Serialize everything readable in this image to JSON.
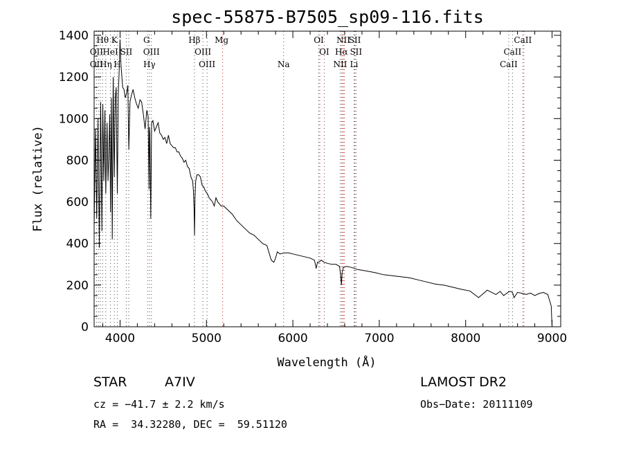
{
  "chart_data": {
    "type": "line",
    "title": "spec-55875-B7505_sp09-116.fits",
    "xlabel": "Wavelength (Å)",
    "ylabel": "Flux (relative)",
    "xlim": [
      3700,
      9100
    ],
    "ylim": [
      0,
      1420
    ],
    "xticks": [
      4000,
      5000,
      6000,
      7000,
      8000,
      9000
    ],
    "yticks": [
      0,
      200,
      400,
      600,
      800,
      1000,
      1200,
      1400
    ],
    "grid": false,
    "series": [
      {
        "x": [
          3700,
          3715,
          3730,
          3745,
          3760,
          3775,
          3790,
          3800,
          3812,
          3825,
          3835,
          3850,
          3860,
          3870,
          3880,
          3890,
          3900,
          3910,
          3920,
          3933,
          3945,
          3955,
          3968,
          3980,
          3990,
          4000,
          4010,
          4020,
          4030,
          4045,
          4060,
          4075,
          4090,
          4101,
          4115,
          4130,
          4150,
          4170,
          4190,
          4210,
          4230,
          4250,
          4270,
          4290,
          4310,
          4325,
          4335,
          4340,
          4345,
          4355,
          4365,
          4380,
          4400,
          4420,
          4440,
          4460,
          4480,
          4500,
          4520,
          4540,
          4560,
          4580,
          4600,
          4620,
          4640,
          4660,
          4680,
          4700,
          4720,
          4740,
          4760,
          4780,
          4800,
          4820,
          4840,
          4850,
          4857,
          4862,
          4867,
          4875,
          4890,
          4910,
          4930,
          4950,
          4970,
          4990,
          5010,
          5030,
          5050,
          5070,
          5090,
          5110,
          5130,
          5150,
          5170,
          5200,
          5250,
          5300,
          5350,
          5400,
          5450,
          5500,
          5550,
          5600,
          5650,
          5700,
          5750,
          5780,
          5800,
          5820,
          5850,
          5900,
          5950,
          6000,
          6050,
          6100,
          6150,
          6200,
          6250,
          6270,
          6285,
          6300,
          6330,
          6360,
          6400,
          6450,
          6500,
          6540,
          6555,
          6563,
          6570,
          6585,
          6620,
          6680,
          6750,
          6850,
          6950,
          7050,
          7150,
          7250,
          7350,
          7450,
          7550,
          7650,
          7750,
          7850,
          7950,
          8050,
          8150,
          8250,
          8350,
          8400,
          8440,
          8498,
          8520,
          8542,
          8560,
          8600,
          8662,
          8700,
          8750,
          8800,
          8850,
          8900,
          8950,
          8990,
          9000
        ],
        "y": [
          480,
          950,
          520,
          1000,
          380,
          1080,
          460,
          1070,
          700,
          1040,
          640,
          980,
          700,
          820,
          1020,
          550,
          1100,
          420,
          1200,
          720,
          1100,
          1150,
          640,
          1120,
          1230,
          1380,
          1260,
          1210,
          1150,
          1140,
          1100,
          1120,
          1160,
          850,
          1080,
          1110,
          1140,
          1100,
          1070,
          1050,
          1090,
          1080,
          1020,
          950,
          1040,
          1010,
          660,
          960,
          930,
          520,
          980,
          990,
          940,
          960,
          980,
          930,
          920,
          900,
          910,
          880,
          920,
          880,
          870,
          860,
          860,
          840,
          840,
          820,
          810,
          790,
          800,
          770,
          760,
          720,
          700,
          650,
          560,
          440,
          620,
          700,
          730,
          730,
          720,
          680,
          670,
          650,
          640,
          620,
          610,
          600,
          580,
          620,
          600,
          590,
          580,
          580,
          560,
          540,
          510,
          490,
          470,
          450,
          440,
          420,
          400,
          390,
          320,
          310,
          330,
          360,
          350,
          355,
          355,
          350,
          345,
          340,
          335,
          330,
          320,
          280,
          310,
          310,
          320,
          310,
          305,
          300,
          300,
          290,
          240,
          200,
          260,
          285,
          290,
          285,
          275,
          268,
          260,
          250,
          245,
          240,
          235,
          225,
          215,
          205,
          200,
          190,
          180,
          172,
          140,
          176,
          155,
          170,
          150,
          168,
          170,
          165,
          140,
          165,
          160,
          155,
          162,
          150,
          160,
          165,
          155,
          100,
          0
        ]
      }
    ],
    "spectral_lines": [
      {
        "label": "Hθ",
        "wl": 3798,
        "row": 1
      },
      {
        "label": "K",
        "wl": 3934,
        "row": 1
      },
      {
        "label": "G",
        "wl": 4307,
        "row": 1
      },
      {
        "label": "Hβ",
        "wl": 4861,
        "row": 1
      },
      {
        "label": "Mg",
        "wl": 5175,
        "row": 1
      },
      {
        "label": "OI",
        "wl": 6300,
        "row": 1
      },
      {
        "label": "NII",
        "wl": 6584,
        "row": 1
      },
      {
        "label": "SII",
        "wl": 6717,
        "row": 1
      },
      {
        "label": "CaII",
        "wl": 8662,
        "row": 1
      },
      {
        "label": "OII",
        "wl": 3727,
        "row": 2
      },
      {
        "label": "HeI",
        "wl": 3889,
        "row": 2
      },
      {
        "label": "SII",
        "wl": 4072,
        "row": 2
      },
      {
        "label": "OIII",
        "wl": 4363,
        "row": 2
      },
      {
        "label": "OIII",
        "wl": 4959,
        "row": 2
      },
      {
        "label": "OI",
        "wl": 6363,
        "row": 2
      },
      {
        "label": "Hα",
        "wl": 6563,
        "row": 2
      },
      {
        "label": "SII",
        "wl": 6731,
        "row": 2
      },
      {
        "label": "CaII",
        "wl": 8542,
        "row": 2
      },
      {
        "label": "OII",
        "wl": 3727,
        "row": 3
      },
      {
        "label": "Hη",
        "wl": 3835,
        "row": 3
      },
      {
        "label": "H",
        "wl": 3968,
        "row": 3
      },
      {
        "label": "Hγ",
        "wl": 4340,
        "row": 3
      },
      {
        "label": "OIII",
        "wl": 5007,
        "row": 3
      },
      {
        "label": "Na",
        "wl": 5893,
        "row": 3
      },
      {
        "label": "NII",
        "wl": 6548,
        "row": 3
      },
      {
        "label": "Li",
        "wl": 6708,
        "row": 3
      },
      {
        "label": "CaII",
        "wl": 8498,
        "row": 3
      }
    ],
    "line_markers": {
      "dotted_black": [
        3727,
        3750,
        3771,
        3798,
        3835,
        3889,
        3934,
        3968,
        4072,
        4101,
        4340,
        4363,
        4861,
        4959,
        5007,
        5893,
        6300,
        6363,
        6548,
        6563,
        6584,
        6708,
        6717,
        6731,
        8498,
        8542,
        8662
      ],
      "dotted_red": [
        4307,
        5175,
        6300,
        6563,
        6584,
        6717,
        8662
      ]
    }
  },
  "footer": {
    "object": "STAR",
    "subclass": "A7IV",
    "survey": "LAMOST DR2",
    "cz": "cz = −41.7 ± 2.2 km/s",
    "obs_date": "Obs−Date: 20111109",
    "coords": "RA =  34.32280, DEC =  59.51120"
  },
  "colors": {
    "spectrum": "#000000",
    "marker_black": "#444444",
    "marker_red": "#cc2222"
  }
}
